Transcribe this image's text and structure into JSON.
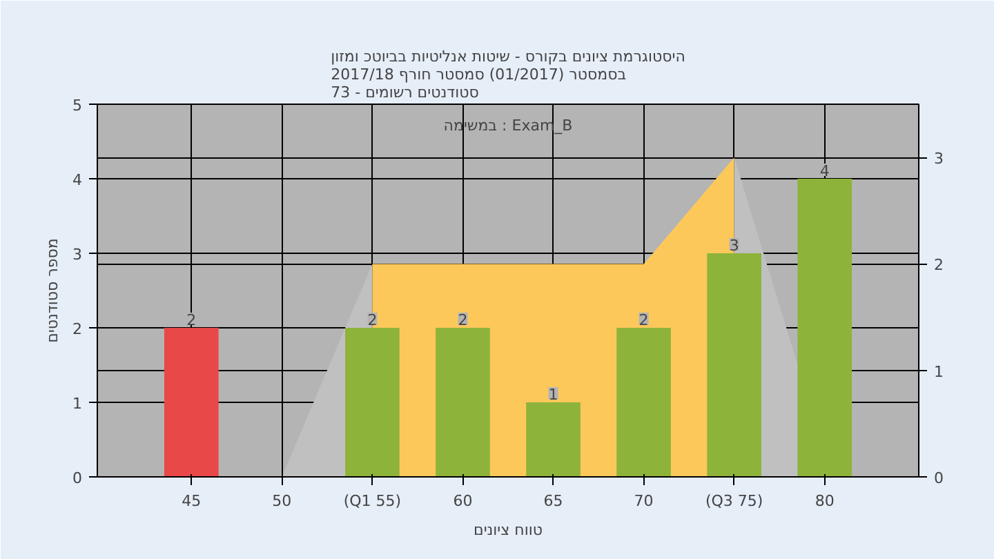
{
  "chart_data": {
    "type": "bar",
    "title": "היסטוגרמת ציונים בקורס - שיטות אנליטיות בביוטכ ומזון\nבסמסטר  (01/2017)  סמסטר חורף 2017/18\nסטודנטים רשומים - 73",
    "xlabel": "טווח ציונים",
    "ylabel": "מספר סטודנטים",
    "annotations": [
      "במשימה : Exam_B"
    ],
    "xlim": [
      39.8,
      85.2
    ],
    "xticks": [
      45,
      50,
      {
        "value": 55,
        "label": "(Q1 55)"
      },
      60,
      65,
      70,
      {
        "value": 75,
        "label": "(Q3 75)"
      },
      80
    ],
    "ylim": [
      0,
      5
    ],
    "yticks": [
      0,
      1,
      2,
      3,
      4,
      5
    ],
    "y2lim": [
      0,
      3.5
    ],
    "y2ticks": [
      0,
      1,
      2,
      3
    ],
    "grid": true,
    "series": [
      {
        "type": "area",
        "axis": "y2",
        "color": "#c0c0c0",
        "x": [
          50,
          55
        ],
        "values": [
          0,
          2
        ]
      },
      {
        "type": "area",
        "axis": "y2",
        "color": "#fdc85a",
        "x": [
          55,
          70,
          75
        ],
        "values": [
          2,
          2,
          3
        ]
      },
      {
        "type": "area",
        "axis": "y2",
        "color": "#c0c0c0",
        "x": [
          75,
          78.6
        ],
        "values": [
          3,
          1
        ]
      },
      {
        "x": [
          45,
          50,
          55,
          60,
          65,
          70,
          75,
          80
        ],
        "values": [
          2,
          0,
          2,
          2,
          1,
          2,
          3,
          4
        ],
        "colors": [
          "#e84848",
          "#8db33a",
          "#8db33a",
          "#8db33a",
          "#8db33a",
          "#8db33a",
          "#8db33a",
          "#8db33a"
        ],
        "value_labels": [
          "2",
          null,
          "2",
          "2",
          "1",
          "2",
          "3",
          "4"
        ]
      }
    ]
  }
}
